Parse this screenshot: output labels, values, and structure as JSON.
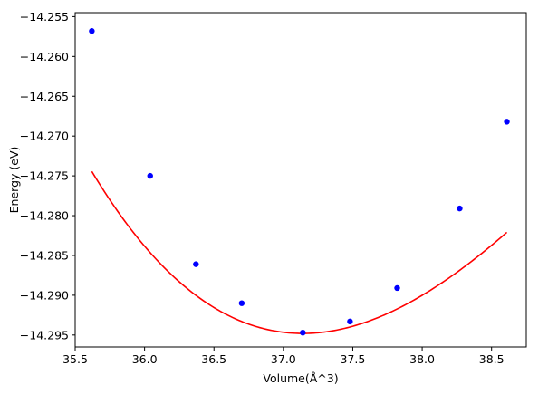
{
  "chart_data": {
    "type": "scatter",
    "title": "",
    "xlabel": "Volume(Å^3)",
    "ylabel": "Energy (eV)",
    "xlim": [
      35.5,
      38.75
    ],
    "ylim": [
      -14.2965,
      -14.2545
    ],
    "xticks": [
      35.5,
      36.0,
      36.5,
      37.0,
      37.5,
      38.0,
      38.5
    ],
    "xtick_labels": [
      "35.5",
      "36.0",
      "36.5",
      "37.0",
      "37.5",
      "38.0",
      "38.5"
    ],
    "yticks": [
      -14.255,
      -14.26,
      -14.265,
      -14.27,
      -14.275,
      -14.28,
      -14.285,
      -14.29,
      -14.295
    ],
    "ytick_labels": [
      "−14.255",
      "−14.260",
      "−14.265",
      "−14.270",
      "−14.275",
      "−14.280",
      "−14.285",
      "−14.290",
      "−14.295"
    ],
    "grid": false,
    "series": [
      {
        "kind": "points",
        "color": "#0000ff",
        "x": [
          35.62,
          36.04,
          36.37,
          36.7,
          37.14,
          37.48,
          37.82,
          38.27,
          38.61
        ],
        "y": [
          -14.2568,
          -14.275,
          -14.2861,
          -14.291,
          -14.2947,
          -14.2933,
          -14.2891,
          -14.2791,
          -14.2682
        ]
      },
      {
        "kind": "fit-curve",
        "color": "#ff0000",
        "fit": {
          "x_min": 37.14,
          "y_min": -14.2948,
          "a2": 0.00732,
          "a3": -0.00098,
          "x_from": 35.62,
          "x_to": 38.61
        }
      }
    ]
  }
}
